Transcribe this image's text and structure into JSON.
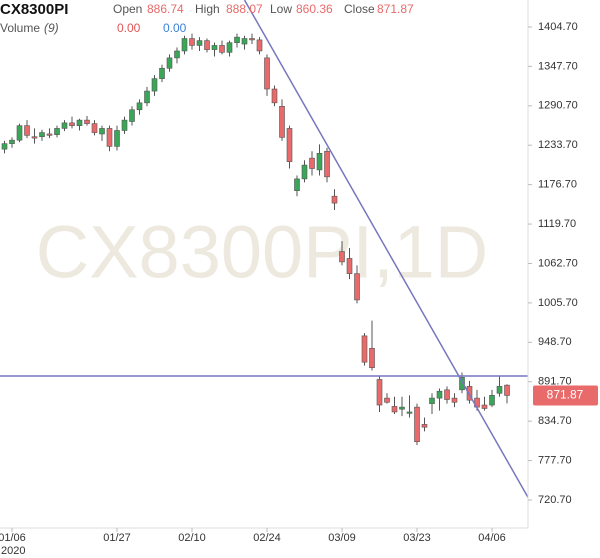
{
  "chart_data": {
    "type": "candlestick",
    "symbol": "CX8300PI",
    "ohlc_header": [
      {
        "label": "Open",
        "value": "886.74"
      },
      {
        "label": "High",
        "value": "888.07"
      },
      {
        "label": "Low",
        "value": "860.36"
      },
      {
        "label": "Close",
        "value": "871.87"
      }
    ],
    "volume_label": "Volume",
    "volume_period": "(9)",
    "volume_values": [
      "0.00",
      "0.00"
    ],
    "volume_colors": [
      "#e05555",
      "#3b82d6"
    ],
    "watermark": "CX8300PI,1D",
    "year": "2020",
    "categories": [
      null,
      "01/06",
      null,
      null,
      null,
      null,
      null,
      null,
      null,
      null,
      null,
      null,
      null,
      null,
      null,
      "01/27",
      null,
      null,
      null,
      null,
      null,
      null,
      null,
      null,
      null,
      "02/10",
      null,
      null,
      null,
      null,
      null,
      null,
      null,
      null,
      null,
      "02/24",
      null,
      null,
      null,
      null,
      null,
      null,
      null,
      null,
      null,
      "03/09",
      null,
      null,
      null,
      null,
      null,
      null,
      null,
      null,
      null,
      "03/23",
      null,
      null,
      null,
      null,
      null,
      null,
      null,
      null,
      null,
      "04/06",
      null,
      null
    ],
    "open": [
      1228,
      1236,
      1241,
      1262,
      1246,
      1246,
      1250,
      1249,
      1258,
      1266,
      1262,
      1270,
      1265,
      1250,
      1258,
      1232,
      1255,
      1268,
      1285,
      1295,
      1312,
      1330,
      1345,
      1360,
      1370,
      1388,
      1378,
      1385,
      1372,
      1378,
      1368,
      1382,
      1380,
      1388,
      1386,
      1360,
      1315,
      1290,
      1258,
      1168,
      1185,
      1215,
      1198,
      1225,
      1160,
      1080,
      1070,
      1048,
      958,
      940,
      895,
      868,
      856,
      852,
      846,
      855,
      830,
      860,
      868,
      880,
      868,
      880,
      885,
      868,
      858,
      858,
      875,
      886.74
    ],
    "high": [
      1240,
      1245,
      1265,
      1270,
      1258,
      1256,
      1258,
      1262,
      1270,
      1275,
      1272,
      1276,
      1270,
      1262,
      1262,
      1262,
      1275,
      1290,
      1300,
      1318,
      1335,
      1350,
      1365,
      1375,
      1392,
      1395,
      1390,
      1388,
      1382,
      1385,
      1385,
      1395,
      1392,
      1395,
      1390,
      1365,
      1320,
      1300,
      1262,
      1190,
      1212,
      1225,
      1235,
      1230,
      1170,
      1095,
      1085,
      1060,
      962,
      980,
      900,
      875,
      870,
      870,
      872,
      860,
      840,
      875,
      882,
      885,
      875,
      905,
      893,
      880,
      870,
      880,
      900,
      888.07
    ],
    "low": [
      1222,
      1230,
      1238,
      1244,
      1236,
      1240,
      1244,
      1245,
      1254,
      1258,
      1255,
      1262,
      1248,
      1240,
      1225,
      1226,
      1250,
      1262,
      1278,
      1290,
      1305,
      1325,
      1340,
      1352,
      1365,
      1372,
      1370,
      1368,
      1362,
      1365,
      1362,
      1375,
      1372,
      1380,
      1365,
      1305,
      1290,
      1240,
      1200,
      1160,
      1180,
      1190,
      1190,
      1180,
      1140,
      1060,
      1040,
      1005,
      915,
      908,
      848,
      860,
      845,
      842,
      840,
      800,
      820,
      845,
      850,
      860,
      855,
      875,
      860,
      850,
      850,
      855,
      870,
      860.36
    ],
    "close": [
      1236,
      1241,
      1262,
      1248,
      1244,
      1252,
      1248,
      1258,
      1266,
      1262,
      1270,
      1265,
      1252,
      1258,
      1232,
      1255,
      1270,
      1285,
      1295,
      1312,
      1330,
      1345,
      1360,
      1370,
      1388,
      1378,
      1385,
      1372,
      1378,
      1368,
      1382,
      1390,
      1388,
      1386,
      1370,
      1315,
      1295,
      1245,
      1210,
      1185,
      1205,
      1200,
      1222,
      1188,
      1150,
      1065,
      1048,
      1010,
      920,
      912,
      858,
      862,
      848,
      855,
      848,
      805,
      826,
      868,
      878,
      866,
      862,
      898,
      865,
      855,
      853,
      872,
      885,
      871.87
    ],
    "up_color": "#3aa657",
    "down_color": "#e86a6a",
    "ylim": [
      680.2,
      1443.7
    ],
    "yticks": [
      {
        "value": 720.7,
        "label": "720.70"
      },
      {
        "value": 777.7,
        "label": "777.70"
      },
      {
        "value": 834.7,
        "label": "834.70"
      },
      {
        "value": 891.7,
        "label": "891.70"
      },
      {
        "value": 948.7,
        "label": "948.70"
      },
      {
        "value": 1005.7,
        "label": "1005.70"
      },
      {
        "value": 1062.7,
        "label": "1062.70"
      },
      {
        "value": 1119.7,
        "label": "1119.70"
      },
      {
        "value": 1176.7,
        "label": "1176.70"
      },
      {
        "value": 1233.7,
        "label": "1233.70"
      },
      {
        "value": 1290.7,
        "label": "1290.70"
      },
      {
        "value": 1347.7,
        "label": "1347.70"
      },
      {
        "value": 1404.7,
        "label": "1404.70"
      }
    ],
    "last_price": 871.87,
    "horizontal_line": 900,
    "trend_line": {
      "x": [
        32,
        70
      ],
      "y": [
        1443.7,
        720.7
      ]
    },
    "line_color": "#7676c0"
  }
}
